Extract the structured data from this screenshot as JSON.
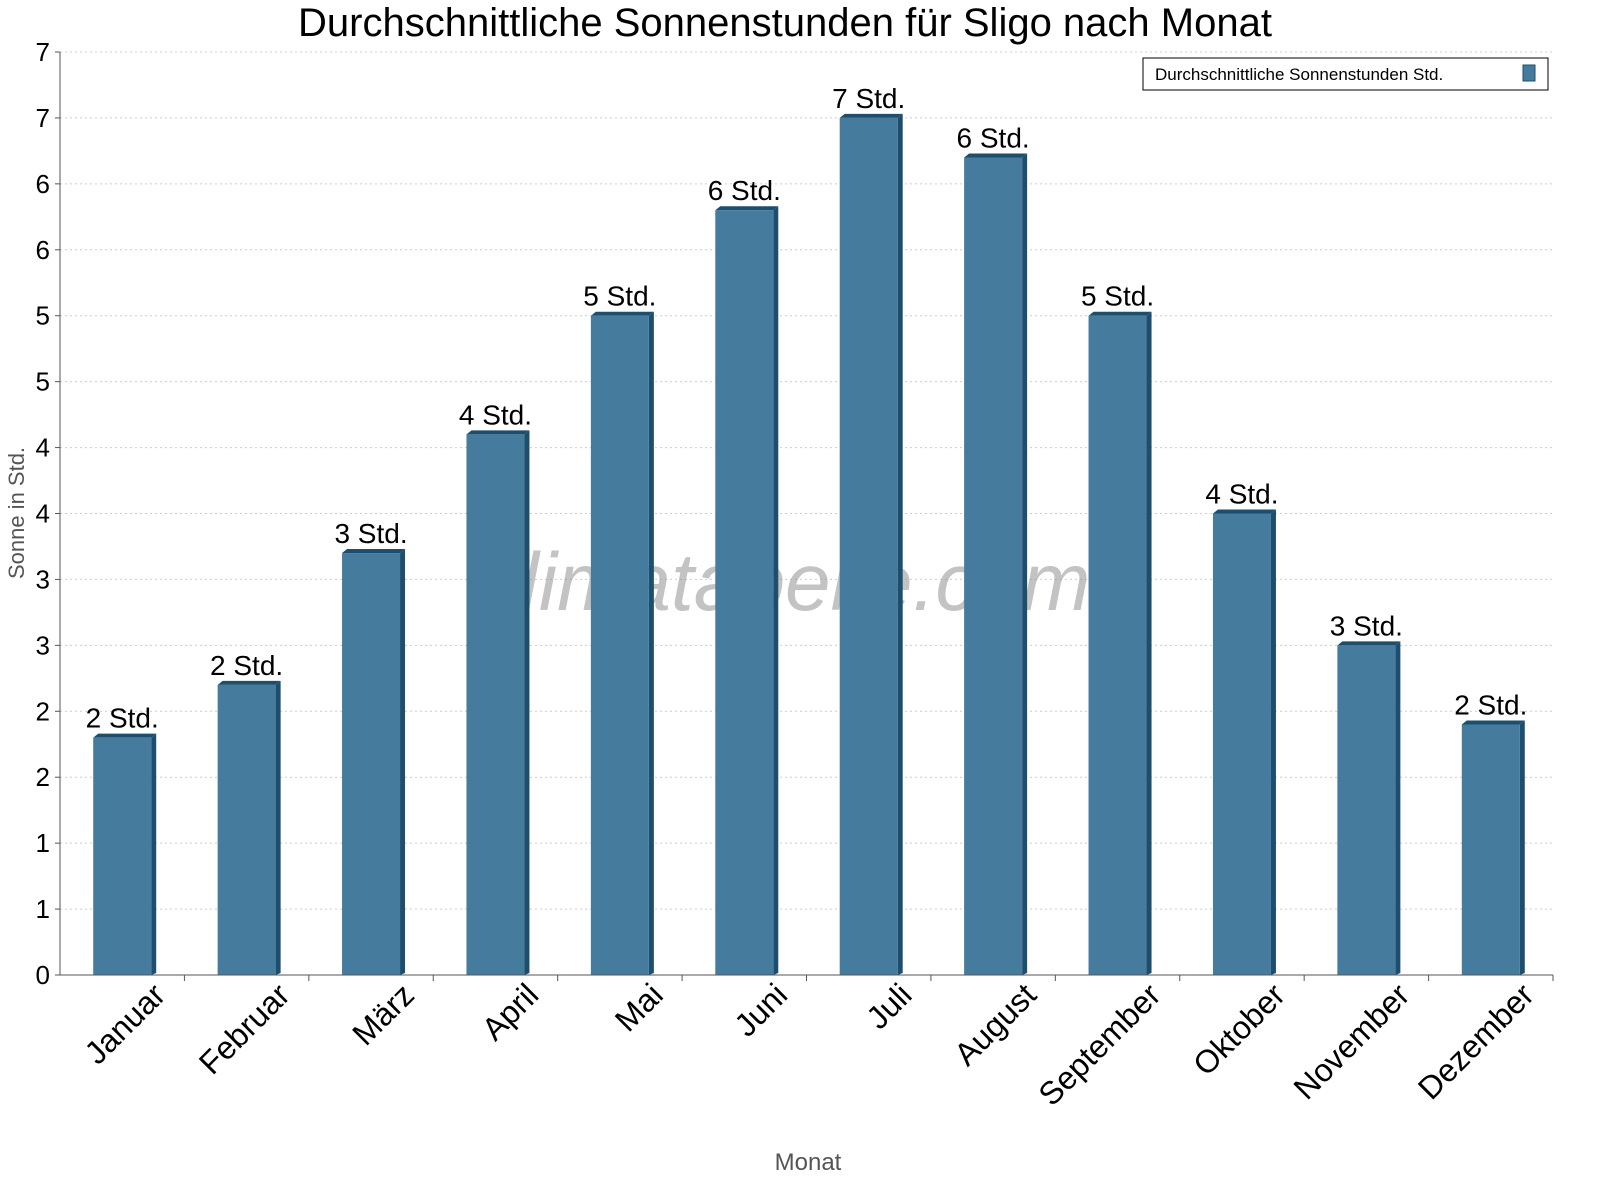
{
  "chart_data": {
    "type": "bar",
    "title": "Durchschnittliche Sonnenstunden für Sligo nach Monat",
    "xlabel": "Monat",
    "ylabel": "Sonne in Std.",
    "categories": [
      "Januar",
      "Februar",
      "März",
      "April",
      "Mai",
      "Juni",
      "Juli",
      "August",
      "September",
      "Oktober",
      "November",
      "Dezember"
    ],
    "series": [
      {
        "name": "Durchschnittliche Sonnenstunden Std.",
        "values": [
          1.8,
          2.2,
          3.2,
          4.1,
          5.0,
          5.8,
          6.5,
          6.2,
          5.0,
          3.5,
          2.5,
          1.9
        ],
        "data_labels": [
          "2 Std.",
          "2 Std.",
          "3 Std.",
          "4 Std.",
          "5 Std.",
          "6 Std.",
          "7 Std.",
          "6 Std.",
          "5 Std.",
          "4 Std.",
          "3 Std.",
          "2 Std."
        ]
      }
    ],
    "ylim": [
      0,
      7
    ],
    "yticks": [
      0,
      0.5,
      1,
      1.5,
      2,
      2.5,
      3,
      3.5,
      4,
      4.5,
      5,
      5.5,
      6,
      6.5,
      7
    ],
    "ytick_labels": [
      "0",
      "1",
      "1",
      "2",
      "2",
      "3",
      "3",
      "4",
      "4",
      "5",
      "5",
      "6",
      "6",
      "7",
      "7"
    ],
    "grid": true,
    "legend_position": "top-right",
    "colors": {
      "bar": "#457b9d",
      "bar_side": "#1d4e6e"
    },
    "watermark": "klimatabelle.com"
  }
}
